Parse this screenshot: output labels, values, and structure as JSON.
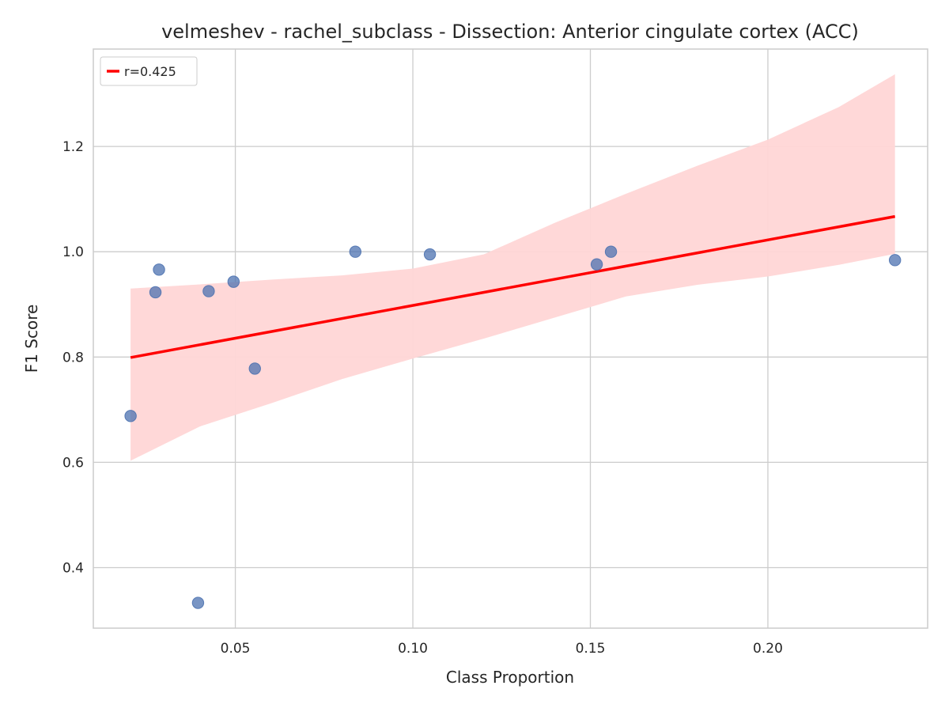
{
  "chart_data": {
    "type": "scatter",
    "title": "velmeshev - rachel_subclass - Dissection: Anterior cingulate cortex (ACC)",
    "xlabel": "Class Proportion",
    "ylabel": "F1 Score",
    "xlim": [
      0.01,
      0.245
    ],
    "ylim": [
      0.285,
      1.385
    ],
    "x_ticks": [
      0.05,
      0.1,
      0.15,
      0.2
    ],
    "x_tick_labels": [
      "0.05",
      "0.10",
      "0.15",
      "0.20"
    ],
    "y_ticks": [
      0.4,
      0.6,
      0.8,
      1.0,
      1.2
    ],
    "y_tick_labels": [
      "0.4",
      "0.6",
      "0.8",
      "1.0",
      "1.2"
    ],
    "grid": true,
    "legend_position": "top-left",
    "points": [
      {
        "x": 0.0205,
        "y": 0.688
      },
      {
        "x": 0.0275,
        "y": 0.923
      },
      {
        "x": 0.0285,
        "y": 0.966
      },
      {
        "x": 0.0395,
        "y": 0.333
      },
      {
        "x": 0.0425,
        "y": 0.925
      },
      {
        "x": 0.0495,
        "y": 0.943
      },
      {
        "x": 0.0555,
        "y": 0.778
      },
      {
        "x": 0.0838,
        "y": 1.0
      },
      {
        "x": 0.1048,
        "y": 0.995
      },
      {
        "x": 0.1518,
        "y": 0.976
      },
      {
        "x": 0.1558,
        "y": 1.0
      },
      {
        "x": 0.2358,
        "y": 0.984
      }
    ],
    "regression": {
      "label": "r=0.425",
      "x": [
        0.0205,
        0.2358
      ],
      "y": [
        0.799,
        1.067
      ]
    },
    "ci_band": {
      "x": [
        0.0205,
        0.04,
        0.06,
        0.08,
        0.1,
        0.12,
        0.14,
        0.16,
        0.18,
        0.2,
        0.22,
        0.2358
      ],
      "upper": [
        0.93,
        0.938,
        0.947,
        0.955,
        0.968,
        0.995,
        1.055,
        1.11,
        1.163,
        1.213,
        1.275,
        1.337
      ],
      "lower": [
        0.603,
        0.668,
        0.712,
        0.758,
        0.797,
        0.835,
        0.875,
        0.915,
        0.937,
        0.953,
        0.975,
        0.996
      ]
    },
    "colors": {
      "points": "#4c72b0",
      "regression": "#ff0000",
      "ci_band": "#ffd6d6",
      "grid": "#cccccc",
      "axes_border": "#cccccc"
    }
  }
}
